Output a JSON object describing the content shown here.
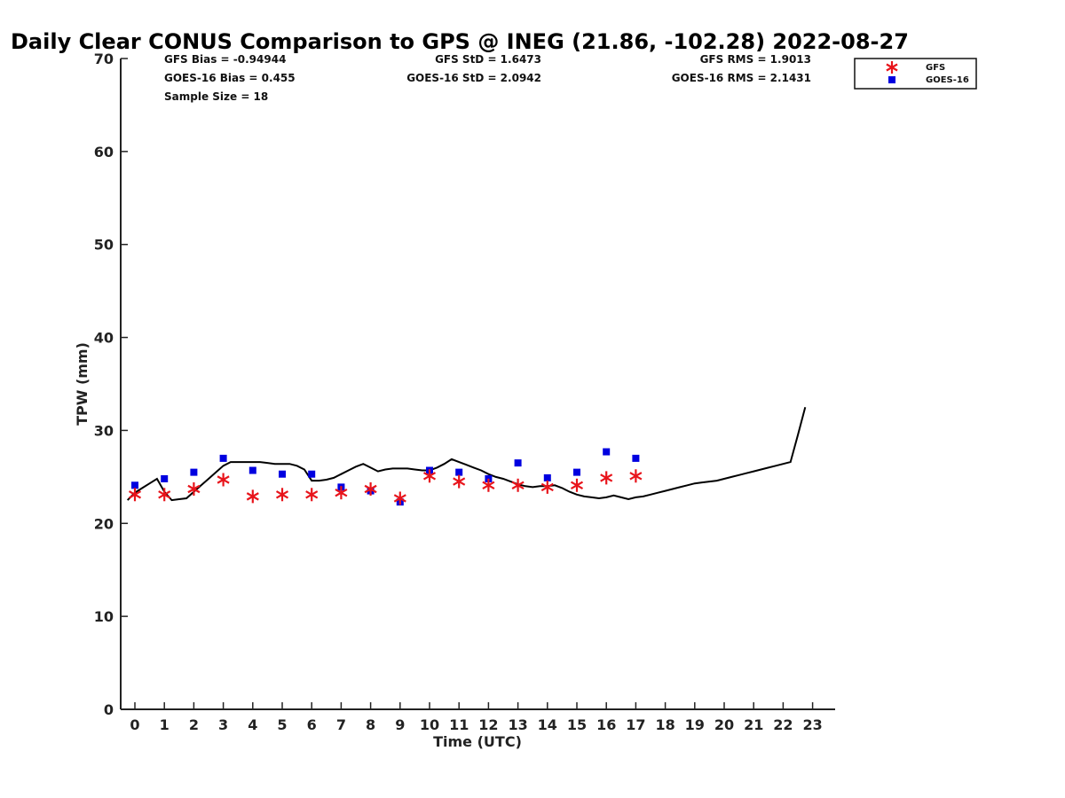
{
  "chart_data": {
    "type": "scatter",
    "title": "Daily Clear CONUS Comparison to GPS @ INEG (21.86, -102.28) 2022-08-27",
    "xlabel": "Time (UTC)",
    "ylabel": "TPW (mm)",
    "xlim": [
      -0.5,
      23.7
    ],
    "ylim": [
      0,
      70
    ],
    "x_ticks": [
      "0",
      "1",
      "2",
      "3",
      "4",
      "5",
      "6",
      "7",
      "8",
      "9",
      "10",
      "11",
      "12",
      "13",
      "14",
      "15",
      "16",
      "17",
      "18",
      "19",
      "20",
      "21",
      "22",
      "23"
    ],
    "y_ticks": [
      "0",
      "10",
      "20",
      "30",
      "40",
      "50",
      "60",
      "70"
    ],
    "grid": false,
    "legend_position": "top-right",
    "series": [
      {
        "name": "GFS",
        "marker": "asterisk",
        "color": "#e8141b",
        "x": [
          0,
          1,
          2,
          3,
          4,
          5,
          6,
          7,
          8,
          9,
          10,
          11,
          12,
          13,
          14,
          15,
          16,
          17
        ],
        "y": [
          23.1,
          23.1,
          23.7,
          24.7,
          22.9,
          23.1,
          23.1,
          23.3,
          23.7,
          22.7,
          25.1,
          24.5,
          24.1,
          24.1,
          23.9,
          24.1,
          24.9,
          25.1
        ]
      },
      {
        "name": "GOES-16",
        "marker": "square",
        "color": "#0000e0",
        "x": [
          0,
          1,
          2,
          3,
          4,
          5,
          6,
          7,
          8,
          9,
          10,
          11,
          12,
          13,
          14,
          15,
          16,
          17
        ],
        "y": [
          24.1,
          24.8,
          25.5,
          27.0,
          25.7,
          25.3,
          25.3,
          23.9,
          23.5,
          22.3,
          25.7,
          25.5,
          24.8,
          26.5,
          24.9,
          25.5,
          27.7,
          27.0
        ]
      },
      {
        "name": "GPS",
        "line": true,
        "color": "#000000",
        "x": [
          -0.25,
          0,
          0.25,
          0.5,
          0.75,
          1,
          1.25,
          1.5,
          1.75,
          2,
          2.25,
          2.5,
          2.75,
          3,
          3.25,
          3.5,
          3.75,
          4,
          4.25,
          4.5,
          4.75,
          5,
          5.25,
          5.5,
          5.75,
          6,
          6.25,
          6.5,
          6.75,
          7,
          7.25,
          7.5,
          7.75,
          8,
          8.25,
          8.5,
          8.75,
          9,
          9.25,
          9.5,
          9.75,
          10,
          10.25,
          10.5,
          10.75,
          11,
          11.25,
          11.5,
          11.75,
          12,
          12.25,
          12.5,
          12.75,
          13,
          13.25,
          13.5,
          13.75,
          14,
          14.25,
          14.5,
          14.75,
          15,
          15.25,
          15.5,
          15.75,
          16,
          16.25,
          16.5,
          16.75,
          17,
          17.25,
          17.5,
          17.75,
          18,
          18.25,
          18.5,
          18.75,
          19,
          19.25,
          19.5,
          19.75,
          20,
          20.25,
          20.5,
          20.75,
          21,
          21.25,
          21.5,
          21.75,
          22,
          22.25,
          22.5,
          22.75
        ],
        "y": [
          22.5,
          23.3,
          23.8,
          24.3,
          24.8,
          23.4,
          22.5,
          22.6,
          22.7,
          23.4,
          24.1,
          24.8,
          25.5,
          26.2,
          26.6,
          26.6,
          26.6,
          26.6,
          26.6,
          26.5,
          26.4,
          26.4,
          26.4,
          26.2,
          25.8,
          24.6,
          24.6,
          24.7,
          24.9,
          25.3,
          25.7,
          26.1,
          26.4,
          26.0,
          25.6,
          25.8,
          25.9,
          25.9,
          25.9,
          25.8,
          25.7,
          25.7,
          26.0,
          26.4,
          26.9,
          26.6,
          26.3,
          26.0,
          25.7,
          25.3,
          25.0,
          24.8,
          24.5,
          24.2,
          24.0,
          23.9,
          24.0,
          24.0,
          24.1,
          23.8,
          23.4,
          23.1,
          22.9,
          22.8,
          22.7,
          22.8,
          23.0,
          22.8,
          22.6,
          22.8,
          22.9,
          23.1,
          23.3,
          23.5,
          23.7,
          23.9,
          24.1,
          24.3,
          24.4,
          24.5,
          24.6,
          24.8,
          25.0,
          25.2,
          25.4,
          25.6,
          25.8,
          26.0,
          26.2,
          26.4,
          26.6,
          29.5,
          32.5
        ]
      }
    ],
    "stats": {
      "gfs_bias": "GFS Bias = -0.94944",
      "goes_bias": "GOES-16 Bias = 0.455",
      "sample_size": "Sample Size = 18",
      "gfs_std": "GFS StD = 1.6473",
      "goes_std": "GOES-16 StD = 2.0942",
      "gfs_rms": "GFS RMS = 1.9013",
      "goes_rms": "GOES-16 RMS = 2.1431"
    },
    "legend": [
      "GFS",
      "GOES-16"
    ]
  }
}
